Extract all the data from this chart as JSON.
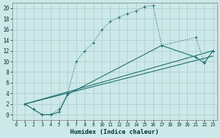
{
  "xlabel": "Humidex (Indice chaleur)",
  "bg_color": "#cce8e8",
  "grid_color": "#b0d0d0",
  "line_color": "#1a6b6b",
  "xlim": [
    -0.5,
    23.5
  ],
  "ylim": [
    -1,
    21
  ],
  "xticks": [
    0,
    1,
    2,
    3,
    4,
    5,
    6,
    7,
    8,
    9,
    10,
    11,
    12,
    13,
    14,
    15,
    16,
    17,
    18,
    19,
    20,
    21,
    22,
    23
  ],
  "yticks": [
    0,
    2,
    4,
    6,
    8,
    10,
    12,
    14,
    16,
    18,
    20
  ],
  "line1_x": [
    1,
    2,
    3,
    4,
    5,
    6,
    7,
    8,
    9,
    10,
    11,
    12,
    13,
    14,
    15,
    16,
    17,
    21,
    22,
    23
  ],
  "line1_y": [
    2,
    1,
    0,
    0,
    1,
    4,
    10,
    12,
    13.5,
    16,
    17.5,
    18.3,
    19,
    19.5,
    20.3,
    20.5,
    13,
    14.5,
    9.7,
    12
  ],
  "line2_x": [
    1,
    2,
    3,
    4,
    5,
    6,
    17,
    21,
    22,
    23
  ],
  "line2_y": [
    2,
    1,
    0,
    0,
    0.5,
    3.8,
    13,
    10.8,
    9.7,
    12
  ],
  "line3_x": [
    1,
    23
  ],
  "line3_y": [
    2,
    12
  ],
  "line4_x": [
    1,
    23
  ],
  "line4_y": [
    2,
    11
  ]
}
